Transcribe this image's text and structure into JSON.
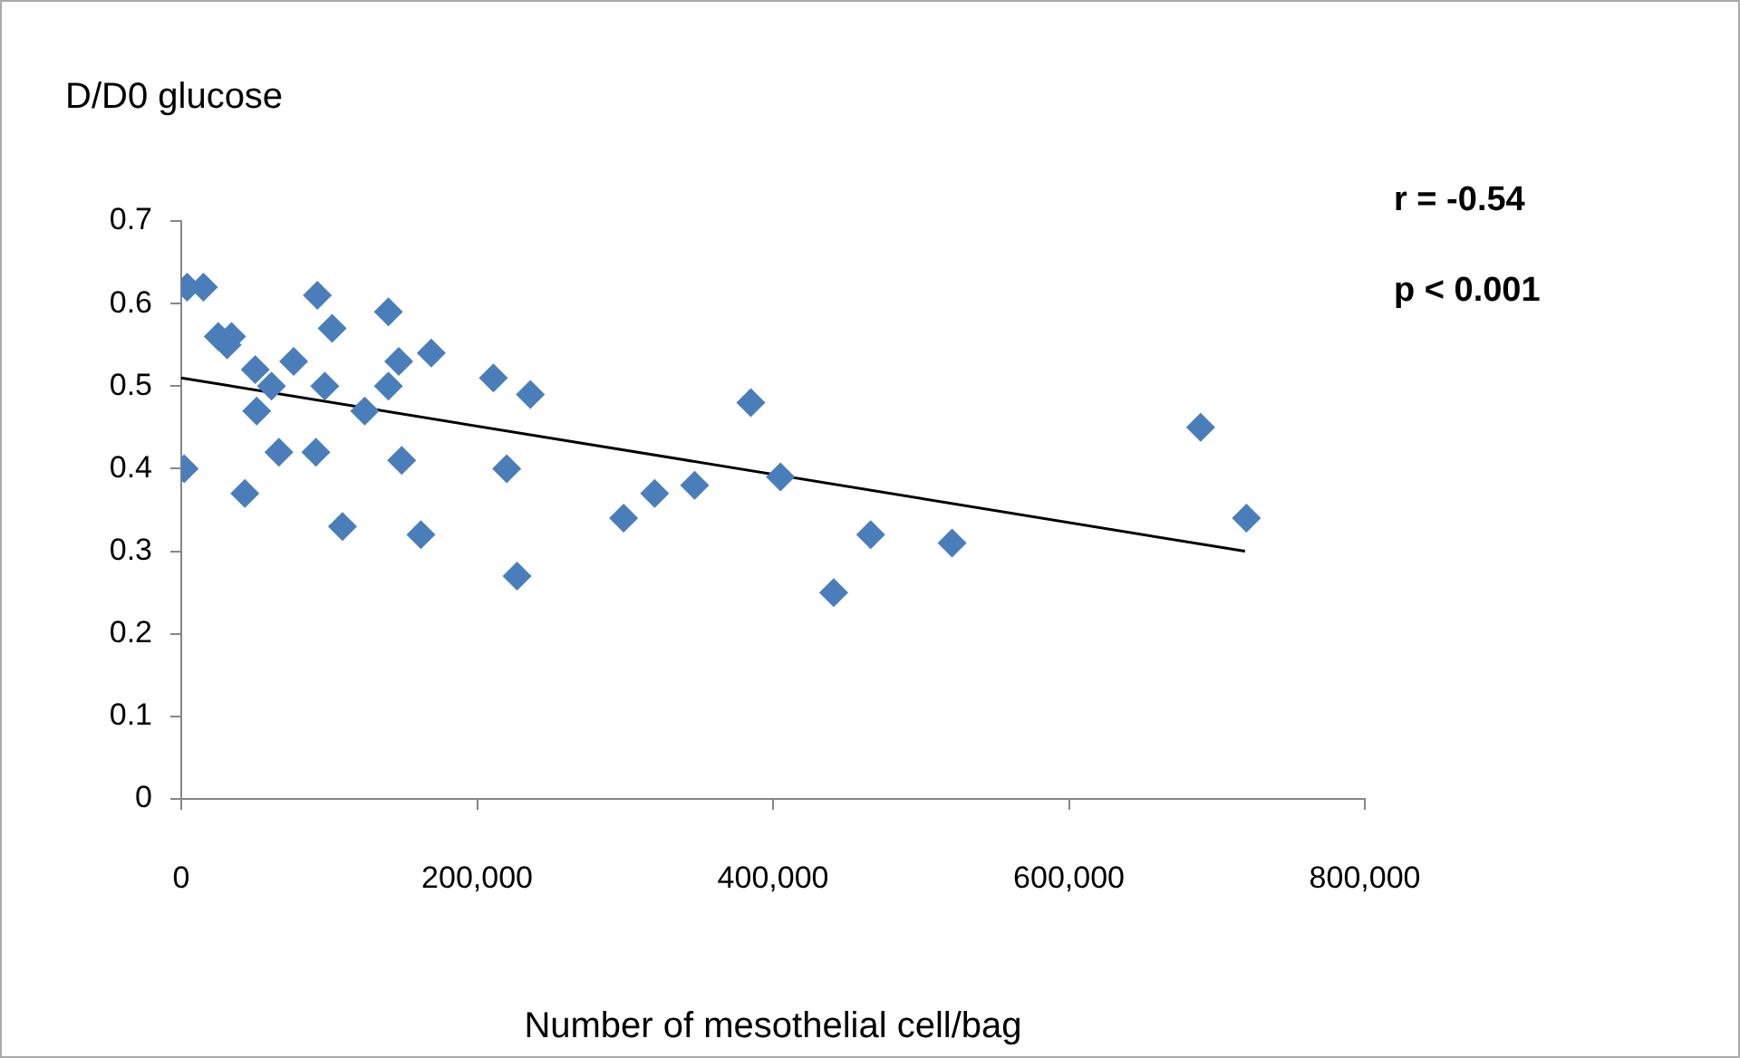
{
  "chart_data": {
    "type": "scatter",
    "ylabel": "D/D0 glucose",
    "xlabel": "Number of mesothelial cell/bag",
    "legend": false,
    "xlim": [
      0,
      800000
    ],
    "xticks": [
      0,
      {
        "value": 200000,
        "label": "200,000"
      },
      {
        "value": 400000,
        "label": "400,000"
      },
      {
        "value": 600000,
        "label": "600,000"
      },
      {
        "value": 800000,
        "label": "800,000"
      }
    ],
    "ylim": [
      0,
      0.7
    ],
    "yticks": [
      0,
      0.1,
      0.2,
      0.3,
      0.4,
      0.5,
      0.6,
      0.7
    ],
    "annotations": [
      "r = -0.54",
      "p < 0.001"
    ],
    "series": [
      {
        "color": "#4a7ebb",
        "marker": "diamond",
        "x": [
          2000,
          4000,
          15000,
          25000,
          34000,
          31000,
          51000,
          43000,
          50000,
          61000,
          66000,
          76000,
          92000,
          97000,
          102000,
          91000,
          109000,
          124000,
          140000,
          140000,
          147000,
          149000,
          162000,
          169000,
          211000,
          220000,
          227000,
          236000,
          299000,
          320000,
          347000,
          385000,
          405000,
          441000,
          466000,
          521000,
          689000,
          720000
        ],
        "values": [
          0.4,
          0.62,
          0.62,
          0.56,
          0.56,
          0.55,
          0.47,
          0.37,
          0.52,
          0.5,
          0.42,
          0.53,
          0.61,
          0.5,
          0.57,
          0.42,
          0.33,
          0.47,
          0.59,
          0.5,
          0.53,
          0.41,
          0.32,
          0.54,
          0.51,
          0.4,
          0.27,
          0.49,
          0.34,
          0.37,
          0.38,
          0.48,
          0.39,
          0.25,
          0.32,
          0.31,
          0.45,
          0.34
        ]
      },
      {
        "type": "line",
        "marker": "none",
        "color": "#000000",
        "x": [
          0,
          719000
        ],
        "values": [
          0.51,
          0.3
        ]
      }
    ]
  }
}
